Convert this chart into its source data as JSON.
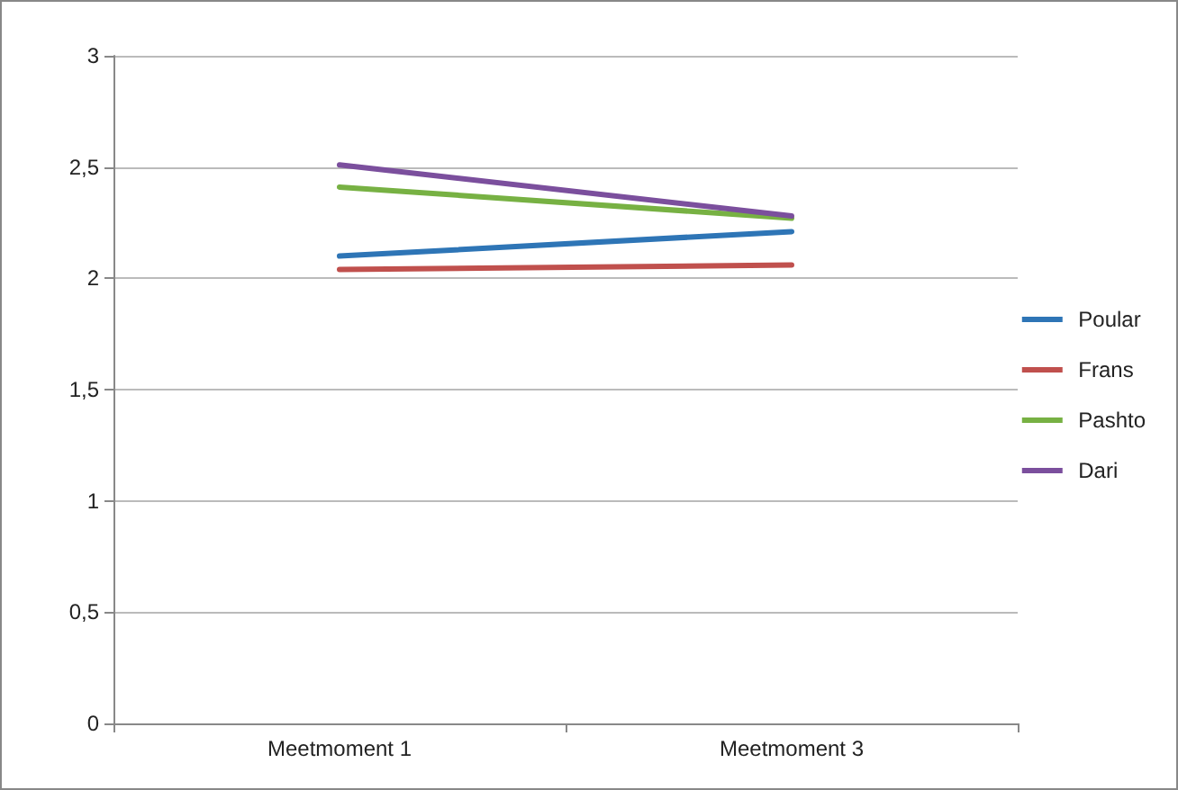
{
  "chart_data": {
    "type": "line",
    "categories": [
      "Meetmoment 1",
      "Meetmoment 3"
    ],
    "series": [
      {
        "name": "Poular",
        "color": "#2e75b6",
        "values": [
          2.1,
          2.21
        ]
      },
      {
        "name": "Frans",
        "color": "#c0504d",
        "values": [
          2.04,
          2.06
        ]
      },
      {
        "name": "Pashto",
        "color": "#77b143",
        "values": [
          2.41,
          2.27
        ]
      },
      {
        "name": "Dari",
        "color": "#7b4f9d",
        "values": [
          2.51,
          2.28
        ]
      }
    ],
    "ylim": [
      0,
      3
    ],
    "yticks": [
      {
        "value": 0,
        "label": "0"
      },
      {
        "value": 0.5,
        "label": "0,5"
      },
      {
        "value": 1,
        "label": "1"
      },
      {
        "value": 1.5,
        "label": "1,5"
      },
      {
        "value": 2,
        "label": "2"
      },
      {
        "value": 2.5,
        "label": "2,5"
      },
      {
        "value": 3,
        "label": "3"
      }
    ],
    "grid": "y",
    "legend": "right",
    "marker": "none",
    "line_style": "solid"
  }
}
